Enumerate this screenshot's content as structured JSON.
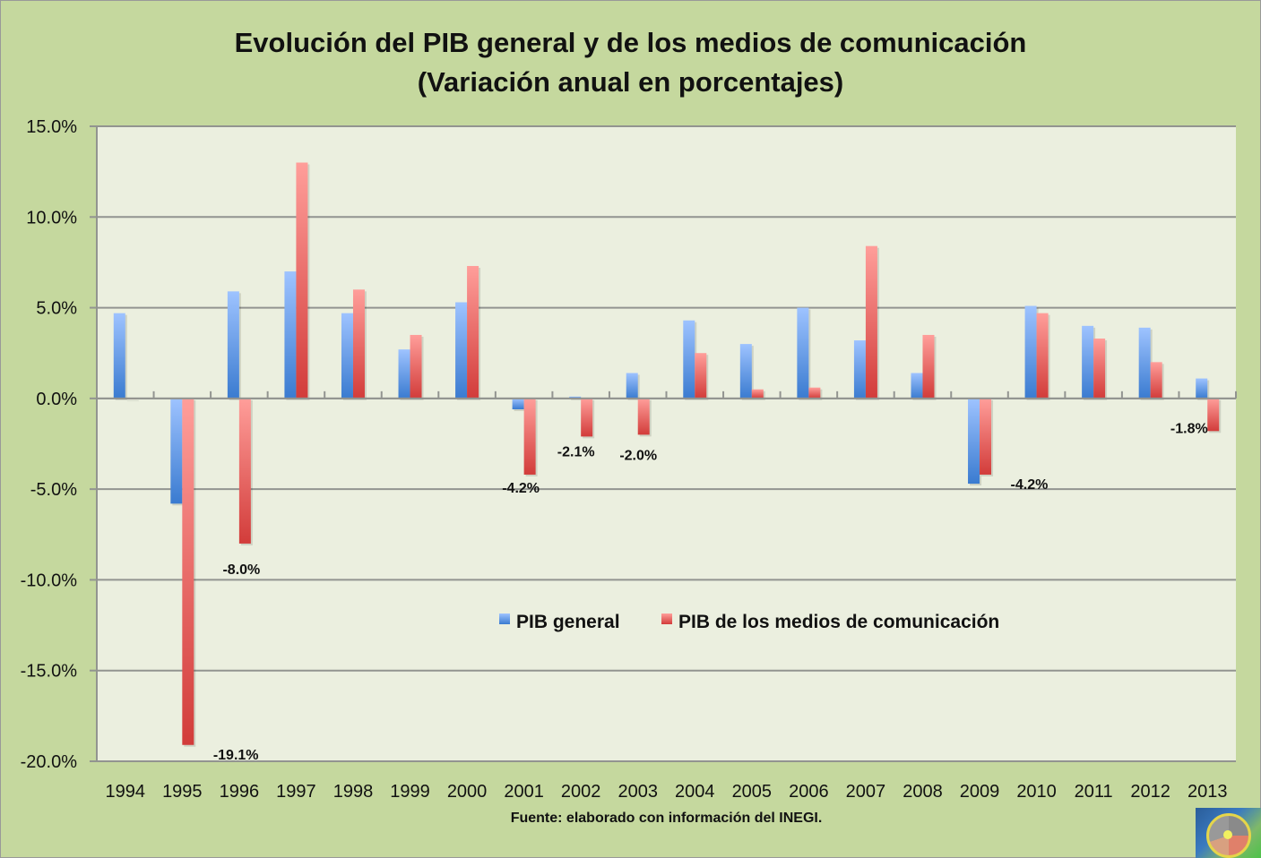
{
  "chart_data": {
    "type": "bar",
    "title": "Evolución del PIB general y de los medios de comunicación",
    "subtitle": "(Variación anual en porcentajes)",
    "xlabel": "",
    "ylabel": "",
    "ylim": [
      -20,
      15
    ],
    "yticks": [
      15,
      10,
      5,
      0,
      -5,
      -10,
      -15,
      -20
    ],
    "ytick_labels": [
      "15.0%",
      "10.0%",
      "5.0%",
      "0.0%",
      "-5.0%",
      "-10.0%",
      "-15.0%",
      "-20.0%"
    ],
    "grid": true,
    "legend_position": "center",
    "categories": [
      "1994",
      "1995",
      "1996",
      "1997",
      "1998",
      "1999",
      "2000",
      "2001",
      "2002",
      "2003",
      "2004",
      "2005",
      "2006",
      "2007",
      "2008",
      "2009",
      "2010",
      "2011",
      "2012",
      "2013"
    ],
    "series": [
      {
        "name": "PIB general",
        "color": "#4a86d4",
        "values": [
          4.7,
          -5.8,
          5.9,
          7.0,
          4.7,
          2.7,
          5.3,
          -0.6,
          0.1,
          1.4,
          4.3,
          3.0,
          5.0,
          3.2,
          1.4,
          -4.7,
          5.1,
          4.0,
          3.9,
          1.1
        ]
      },
      {
        "name": "PIB de los medios de comunicación",
        "color": "#d94444",
        "values": [
          0.0,
          -19.1,
          -8.0,
          13.0,
          6.0,
          3.5,
          7.3,
          -4.2,
          -2.1,
          -2.0,
          2.5,
          0.5,
          0.6,
          8.4,
          3.5,
          -4.2,
          4.7,
          3.3,
          2.0,
          -1.8
        ]
      }
    ],
    "annotations": [
      {
        "category": "1995",
        "series": 1,
        "text": "-19.1%"
      },
      {
        "category": "1996",
        "series": 1,
        "text": "-8.0%"
      },
      {
        "category": "2001",
        "series": 1,
        "text": "-4.2%"
      },
      {
        "category": "2002",
        "series": 1,
        "text": "-2.1%"
      },
      {
        "category": "2003",
        "series": 1,
        "text": "-2.0%"
      },
      {
        "category": "2009",
        "series": 1,
        "text": "-4.2%"
      },
      {
        "category": "2013",
        "series": 1,
        "text": "-1.8%"
      }
    ],
    "source": "Fuente: elaborado con información del INEGI."
  }
}
